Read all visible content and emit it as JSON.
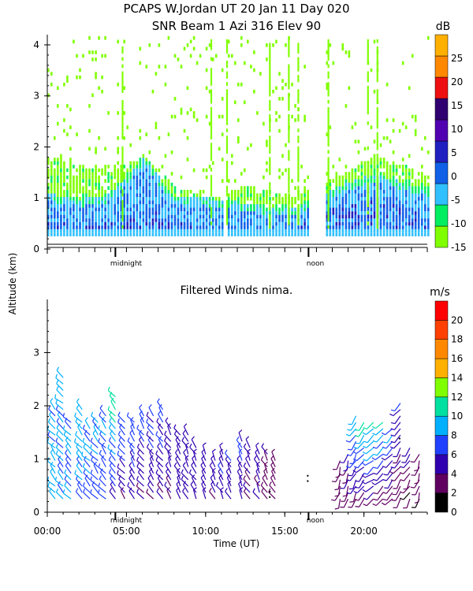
{
  "title_line1": "PCAPS W.Jordan UT  20 Jan 11 Day 020",
  "chart_data": [
    {
      "type": "heatmap",
      "title": "SNR Beam 1 Azi 316 Elev 90",
      "ylabel": "Altitude (km)",
      "xlabel": "",
      "xlim": [
        0,
        24
      ],
      "ylim": [
        0,
        4.2
      ],
      "yticks": [
        "0",
        "1",
        "2",
        "3",
        "4"
      ],
      "time_markers": [
        {
          "label": "midnight",
          "hour": 4.3
        },
        {
          "label": "noon",
          "hour": 16.5
        }
      ],
      "colorbar": {
        "unit": "dB",
        "ticks": [
          "-15",
          "-10",
          "-5",
          "0",
          "5",
          "10",
          "15",
          "20",
          "25"
        ],
        "range": [
          -15,
          30
        ],
        "colors": [
          "#80ff00",
          "#00ee60",
          "#30c0ff",
          "#1060e8",
          "#2020c0",
          "#5000b0",
          "#300070",
          "#ee1010",
          "#ff8800",
          "#ffb000"
        ]
      },
      "layers_snr_db": [
        {
          "hour": 0.0,
          "top_km": 1.8,
          "boundary_km": 0.9,
          "strong_km": 0.5
        },
        {
          "hour": 2.0,
          "top_km": 1.6,
          "boundary_km": 0.8,
          "strong_km": 0.45
        },
        {
          "hour": 4.0,
          "top_km": 1.5,
          "boundary_km": 0.9,
          "strong_km": 0.5
        },
        {
          "hour": 6.0,
          "top_km": 1.8,
          "boundary_km": 1.6,
          "strong_km": 0.8
        },
        {
          "hour": 8.0,
          "top_km": 1.2,
          "boundary_km": 0.85,
          "strong_km": 0.5
        },
        {
          "hour": 10.5,
          "top_km": 0.95,
          "boundary_km": 0.8,
          "strong_km": 0.4
        },
        {
          "hour": 12.5,
          "top_km": 1.2,
          "boundary_km": 0.7,
          "strong_km": 0.4
        },
        {
          "hour": 15.5,
          "top_km": 1.0,
          "boundary_km": 0.6,
          "strong_km": 0.35
        },
        {
          "hour": 18.0,
          "top_km": 1.35,
          "boundary_km": 1.0,
          "strong_km": 0.75
        },
        {
          "hour": 20.5,
          "top_km": 1.8,
          "boundary_km": 1.3,
          "strong_km": 0.9
        },
        {
          "hour": 22.5,
          "top_km": 1.6,
          "boundary_km": 1.1,
          "strong_km": 0.8
        },
        {
          "hour": 24.0,
          "top_km": 1.4,
          "boundary_km": 1.0,
          "strong_km": 0.6
        }
      ]
    },
    {
      "type": "scatter",
      "title": "Filtered Winds nima.",
      "xlabel": "Time (UT)",
      "ylabel": "Altitude (km)",
      "xlim": [
        0,
        24
      ],
      "ylim": [
        0,
        4.0
      ],
      "xticks": [
        "00:00",
        "05:00",
        "10:00",
        "15:00",
        "20:00"
      ],
      "yticks": [
        "0",
        "1",
        "2",
        "3"
      ],
      "time_markers": [
        {
          "label": "midnight",
          "hour": 4.3
        },
        {
          "label": "noon",
          "hour": 16.5
        }
      ],
      "colorbar": {
        "unit": "m/s",
        "ticks": [
          "0",
          "2",
          "4",
          "6",
          "8",
          "10",
          "12",
          "14",
          "16",
          "18",
          "20"
        ],
        "range": [
          0,
          22
        ],
        "colors": [
          "#000000",
          "#600060",
          "#3000b0",
          "#2040ff",
          "#00b0ff",
          "#00e0a0",
          "#80ff00",
          "#ffb000",
          "#ff8800",
          "#ff4000",
          "#ff0000"
        ]
      },
      "wind_profiles": [
        {
          "hour": 0.5,
          "top_km": 2.0,
          "speed_low": 9,
          "speed_high": 8,
          "dir_deg": 320
        },
        {
          "hour": 1.0,
          "top_km": 2.6,
          "speed_low": 8,
          "speed_high": 9,
          "dir_deg": 315
        },
        {
          "hour": 1.5,
          "top_km": 1.7,
          "speed_low": 8,
          "speed_high": 8,
          "dir_deg": 320
        },
        {
          "hour": 2.2,
          "top_km": 2.0,
          "speed_low": 8,
          "speed_high": 9,
          "dir_deg": 320
        },
        {
          "hour": 2.7,
          "top_km": 1.6,
          "speed_low": 8,
          "speed_high": 8,
          "dir_deg": 315
        },
        {
          "hour": 3.2,
          "top_km": 1.8,
          "speed_low": 7,
          "speed_high": 8,
          "dir_deg": 320
        },
        {
          "hour": 3.7,
          "top_km": 1.9,
          "speed_low": 7,
          "speed_high": 8,
          "dir_deg": 320
        },
        {
          "hour": 4.3,
          "top_km": 2.2,
          "speed_low": 5,
          "speed_high": 12,
          "dir_deg": 320
        },
        {
          "hour": 4.9,
          "top_km": 1.8,
          "speed_low": 4,
          "speed_high": 8,
          "dir_deg": 320
        },
        {
          "hour": 5.5,
          "top_km": 1.8,
          "speed_low": 5,
          "speed_high": 7,
          "dir_deg": 325
        },
        {
          "hour": 6.1,
          "top_km": 1.9,
          "speed_low": 4,
          "speed_high": 8,
          "dir_deg": 325
        },
        {
          "hour": 6.7,
          "top_km": 1.9,
          "speed_low": 4,
          "speed_high": 7,
          "dir_deg": 325
        },
        {
          "hour": 7.3,
          "top_km": 2.0,
          "speed_low": 4,
          "speed_high": 7,
          "dir_deg": 325
        },
        {
          "hour": 7.8,
          "top_km": 1.6,
          "speed_low": 4,
          "speed_high": 6,
          "dir_deg": 330
        },
        {
          "hour": 8.4,
          "top_km": 1.5,
          "speed_low": 5,
          "speed_high": 5,
          "dir_deg": 330
        },
        {
          "hour": 8.9,
          "top_km": 1.5,
          "speed_low": 5,
          "speed_high": 5,
          "dir_deg": 330
        },
        {
          "hour": 9.4,
          "top_km": 1.3,
          "speed_low": 4,
          "speed_high": 5,
          "dir_deg": 330
        },
        {
          "hour": 10.0,
          "top_km": 1.1,
          "speed_low": 5,
          "speed_high": 5,
          "dir_deg": 330
        },
        {
          "hour": 10.6,
          "top_km": 1.0,
          "speed_low": 4,
          "speed_high": 5,
          "dir_deg": 330
        },
        {
          "hour": 11.1,
          "top_km": 1.2,
          "speed_low": 5,
          "speed_high": 6,
          "dir_deg": 330
        },
        {
          "hour": 11.6,
          "top_km": 1.0,
          "speed_low": 5,
          "speed_high": 6,
          "dir_deg": 330
        },
        {
          "hour": 12.3,
          "top_km": 1.4,
          "speed_low": 5,
          "speed_high": 6,
          "dir_deg": 330
        },
        {
          "hour": 12.8,
          "top_km": 1.3,
          "speed_low": 4,
          "speed_high": 5,
          "dir_deg": 330
        },
        {
          "hour": 13.4,
          "top_km": 1.1,
          "speed_low": 4,
          "speed_high": 5,
          "dir_deg": 330
        },
        {
          "hour": 13.9,
          "top_km": 1.2,
          "speed_low": 3,
          "speed_high": 4,
          "dir_deg": 330
        },
        {
          "hour": 14.4,
          "top_km": 1.0,
          "speed_low": 3,
          "speed_high": 4,
          "dir_deg": 330
        },
        {
          "hour": 18.5,
          "top_km": 1.0,
          "speed_low": 2,
          "speed_high": 3,
          "dir_deg": 200
        },
        {
          "hour": 19.0,
          "top_km": 1.1,
          "speed_low": 3,
          "speed_high": 4,
          "dir_deg": 200
        },
        {
          "hour": 19.5,
          "top_km": 1.9,
          "speed_low": 3,
          "speed_high": 10,
          "dir_deg": 210
        },
        {
          "hour": 20.0,
          "top_km": 1.8,
          "speed_low": 3,
          "speed_high": 11,
          "dir_deg": 220
        },
        {
          "hour": 20.6,
          "top_km": 1.8,
          "speed_low": 3,
          "speed_high": 12,
          "dir_deg": 230
        },
        {
          "hour": 21.2,
          "top_km": 1.7,
          "speed_low": 3,
          "speed_high": 10,
          "dir_deg": 225
        },
        {
          "hour": 21.8,
          "top_km": 1.6,
          "speed_low": 3,
          "speed_high": 8,
          "dir_deg": 220
        },
        {
          "hour": 22.3,
          "top_km": 2.1,
          "speed_low": 3,
          "speed_high": 6,
          "dir_deg": 215
        },
        {
          "hour": 22.9,
          "top_km": 1.3,
          "speed_low": 2,
          "speed_high": 5,
          "dir_deg": 210
        },
        {
          "hour": 23.5,
          "top_km": 1.1,
          "speed_low": 2,
          "speed_high": 4,
          "dir_deg": 200
        }
      ]
    }
  ]
}
